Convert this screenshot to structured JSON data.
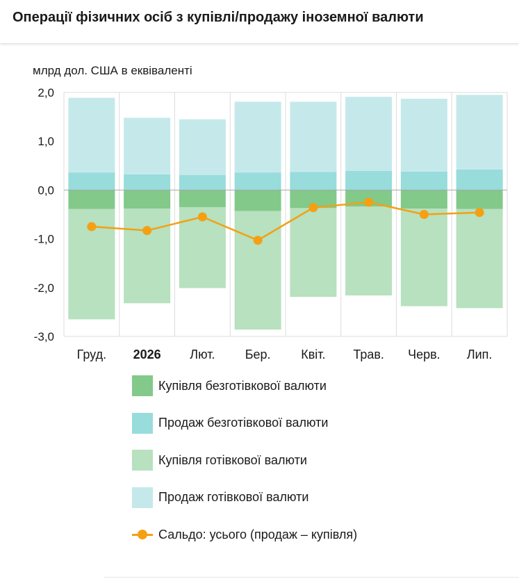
{
  "title": "Операції фізичних осіб з купівлі/продажу іноземної валюти",
  "unit_label": "млрд дол. США в еквіваленті",
  "colors": {
    "buy_noncash": "#82c98a",
    "sell_noncash": "#98dcdc",
    "buy_cash": "#b7e1bf",
    "sell_cash": "#c5e9eb",
    "balance": "#f4a012",
    "grid": "#dcdcdc",
    "zero_line": "#a8a8a8"
  },
  "legend": [
    {
      "key": "buy_noncash",
      "label": "Купівля безготівкової валюти",
      "kind": "box"
    },
    {
      "key": "sell_noncash",
      "label": "Продаж безготівкової валюти",
      "kind": "box"
    },
    {
      "key": "buy_cash",
      "label": "Купівля готівкової валюти",
      "kind": "box"
    },
    {
      "key": "sell_cash",
      "label": "Продаж готівкової валюти",
      "kind": "box"
    },
    {
      "key": "balance",
      "label": "Сальдо: усього (продаж – купівля)",
      "kind": "line"
    }
  ],
  "chart_data": {
    "type": "bar",
    "stacked": true,
    "categories": [
      "Груд.",
      "2026",
      "Лют.",
      "Бер.",
      "Квіт.",
      "Трав.",
      "Черв.",
      "Лип."
    ],
    "bold_categories": [
      "2026"
    ],
    "ylim": [
      -3.0,
      2.0
    ],
    "yticks": [
      "2,0",
      "1,0",
      "0,0",
      "-1,0",
      "-2,0",
      "-3,0"
    ],
    "ytick_values": [
      2,
      1,
      0,
      -1,
      -2,
      -3
    ],
    "grid": true,
    "series": [
      {
        "key": "sell_noncash",
        "name": "Продаж безготівкової валюти",
        "values": [
          0.36,
          0.32,
          0.31,
          0.36,
          0.37,
          0.39,
          0.38,
          0.42
        ]
      },
      {
        "key": "sell_cash",
        "name": "Продаж готівкової валюти",
        "values": [
          1.53,
          1.16,
          1.14,
          1.45,
          1.44,
          1.52,
          1.49,
          1.53
        ]
      },
      {
        "key": "buy_noncash",
        "name": "Купівля безготівкової валюти",
        "values": [
          -0.39,
          -0.38,
          -0.35,
          -0.43,
          -0.37,
          -0.34,
          -0.38,
          -0.39
        ]
      },
      {
        "key": "buy_cash",
        "name": "Купівля готівкової валюти",
        "values": [
          -2.26,
          -1.94,
          -1.66,
          -2.43,
          -1.82,
          -1.82,
          -2.0,
          -2.03
        ]
      },
      {
        "key": "balance",
        "name": "Сальдо: усього (продаж – купівля)",
        "type": "line",
        "values": [
          -0.75,
          -0.83,
          -0.55,
          -1.03,
          -0.36,
          -0.25,
          -0.5,
          -0.46
        ]
      }
    ]
  }
}
